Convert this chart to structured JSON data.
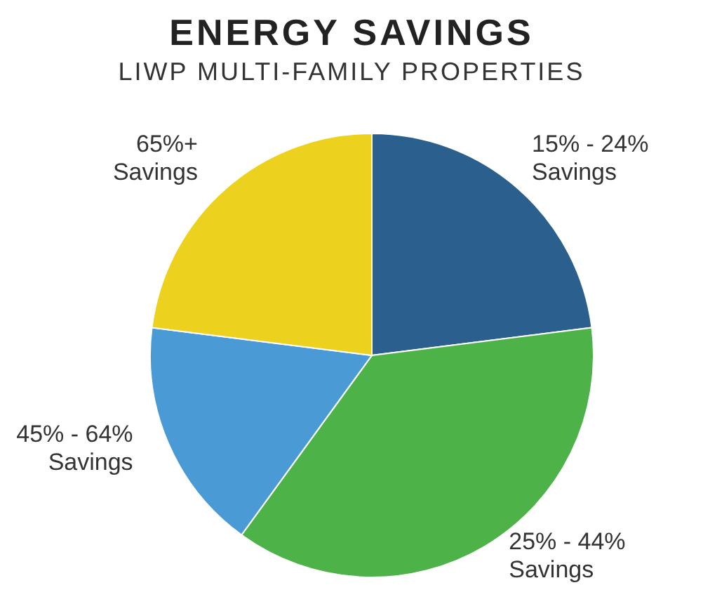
{
  "chart_data": {
    "type": "pie",
    "title": "ENERGY SAVINGS",
    "subtitle": "LIWP MULTI-FAMILY PROPERTIES",
    "categories": [
      "15% - 24% Savings",
      "25% - 44% Savings",
      "45% - 64% Savings",
      "65%+ Savings"
    ],
    "values": [
      23,
      37,
      17,
      23
    ],
    "colors": [
      "#2b5f8e",
      "#4db348",
      "#4a9ad6",
      "#ecd21f"
    ]
  }
}
